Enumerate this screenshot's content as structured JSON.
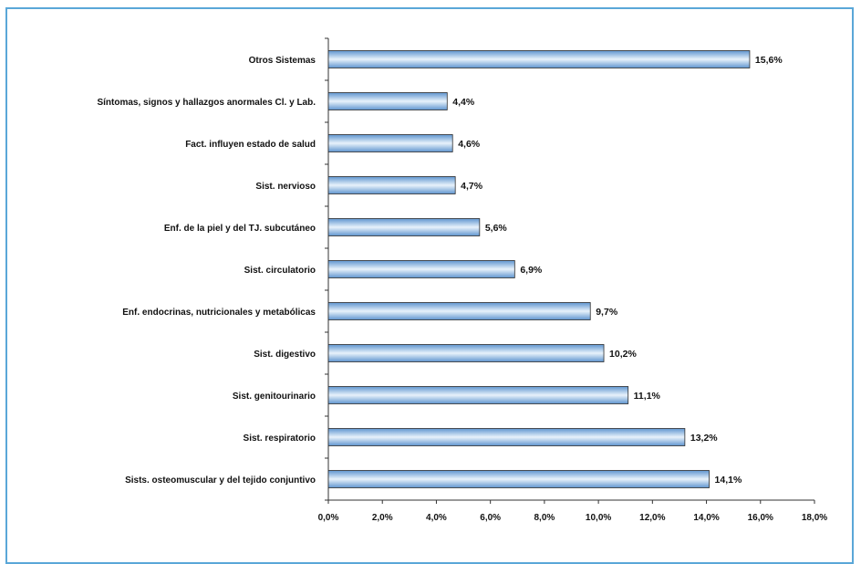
{
  "chart_data": {
    "type": "bar",
    "orientation": "horizontal",
    "title": "",
    "xlabel": "",
    "ylabel": "",
    "xlim": [
      0,
      18
    ],
    "x_ticks": [
      "0,0%",
      "2,0%",
      "4,0%",
      "6,0%",
      "8,0%",
      "10,0%",
      "12,0%",
      "14,0%",
      "16,0%",
      "18,0%"
    ],
    "categories": [
      "Otros Sistemas",
      "Síntomas, signos y hallazgos anormales Cl. y Lab.",
      "Fact. influyen estado de salud",
      "Sist. nervioso",
      "Enf. de la piel y del TJ. subcutáneo",
      "Sist. circulatorio",
      "Enf. endocrinas, nutricionales y metabólicas",
      "Sist. digestivo",
      "Sist. genitourinario",
      "Sist. respiratorio",
      "Sists. osteomuscular y del tejido conjuntivo"
    ],
    "values": [
      15.6,
      4.4,
      4.6,
      4.7,
      5.6,
      6.9,
      9.7,
      10.2,
      11.1,
      13.2,
      14.1
    ],
    "value_labels": [
      "15,6%",
      "4,4%",
      "4,6%",
      "4,7%",
      "5,6%",
      "6,9%",
      "9,7%",
      "10,2%",
      "11,1%",
      "13,2%",
      "14,1%"
    ],
    "grid": false,
    "legend": "none",
    "colors": {
      "bar_light": "#e8f2fb",
      "bar_mid": "#9cc6ec",
      "bar_dark": "#5f95cf",
      "bar_edge": "#2d2d2d",
      "frame": "#5aa7d8"
    }
  }
}
